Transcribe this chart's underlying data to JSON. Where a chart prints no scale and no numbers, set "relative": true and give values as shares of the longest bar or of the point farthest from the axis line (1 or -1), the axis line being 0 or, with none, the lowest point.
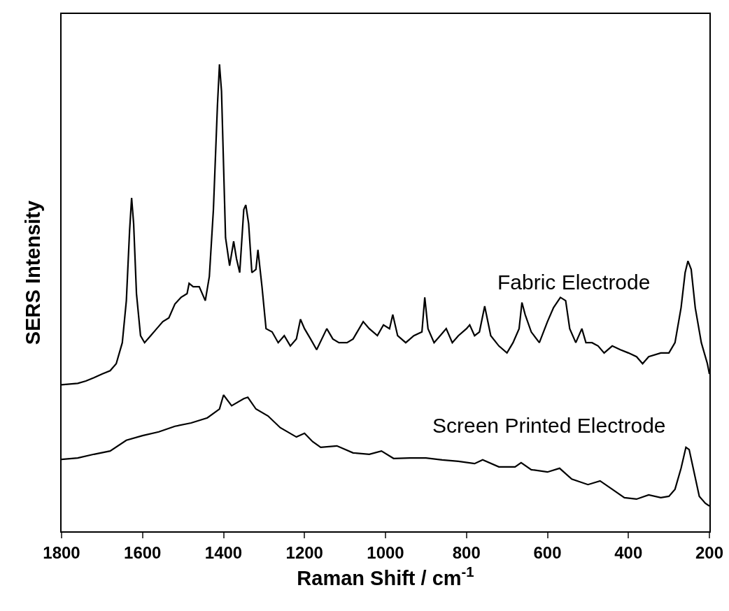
{
  "chart_data": {
    "type": "line",
    "relative": true,
    "xlabel": "Raman Shift / cm$^{-1}$",
    "ylabel": "SERS Intensity",
    "xlim": [
      1800,
      200
    ],
    "xticks": [
      1800,
      1600,
      1400,
      1200,
      1000,
      800,
      600,
      400,
      200
    ],
    "series": [
      {
        "name": "Fabric Electrode",
        "color": "#000000",
        "x": [
          1800,
          1760,
          1740,
          1720,
          1700,
          1680,
          1665,
          1650,
          1640,
          1632,
          1627,
          1622,
          1615,
          1605,
          1595,
          1580,
          1565,
          1550,
          1535,
          1520,
          1505,
          1490,
          1485,
          1475,
          1460,
          1445,
          1435,
          1425,
          1415,
          1410,
          1405,
          1395,
          1385,
          1375,
          1368,
          1360,
          1350,
          1345,
          1338,
          1330,
          1320,
          1315,
          1305,
          1295,
          1280,
          1265,
          1250,
          1235,
          1220,
          1210,
          1200,
          1185,
          1170,
          1145,
          1130,
          1115,
          1095,
          1080,
          1055,
          1040,
          1020,
          1005,
          990,
          982,
          970,
          950,
          930,
          910,
          903,
          895,
          880,
          865,
          850,
          835,
          820,
          800,
          792,
          780,
          768,
          755,
          740,
          720,
          700,
          685,
          670,
          663,
          655,
          640,
          620,
          600,
          585,
          568,
          555,
          545,
          530,
          515,
          505,
          490,
          475,
          460,
          440,
          420,
          400,
          380,
          365,
          350,
          320,
          300,
          285,
          270,
          260,
          253,
          245,
          235,
          220,
          205,
          200
        ],
        "values": [
          0.314,
          0.317,
          0.322,
          0.329,
          0.337,
          0.344,
          0.359,
          0.404,
          0.494,
          0.644,
          0.714,
          0.659,
          0.509,
          0.419,
          0.404,
          0.419,
          0.434,
          0.449,
          0.457,
          0.487,
          0.501,
          0.509,
          0.531,
          0.524,
          0.524,
          0.494,
          0.546,
          0.689,
          0.913,
          1,
          0.943,
          0.629,
          0.569,
          0.621,
          0.584,
          0.554,
          0.689,
          0.699,
          0.659,
          0.554,
          0.561,
          0.603,
          0.524,
          0.434,
          0.427,
          0.404,
          0.419,
          0.397,
          0.412,
          0.454,
          0.434,
          0.412,
          0.389,
          0.434,
          0.412,
          0.404,
          0.404,
          0.412,
          0.449,
          0.434,
          0.419,
          0.442,
          0.434,
          0.464,
          0.419,
          0.404,
          0.419,
          0.427,
          0.501,
          0.434,
          0.404,
          0.419,
          0.434,
          0.404,
          0.419,
          0.434,
          0.442,
          0.419,
          0.427,
          0.482,
          0.419,
          0.397,
          0.382,
          0.404,
          0.434,
          0.49,
          0.464,
          0.427,
          0.404,
          0.449,
          0.479,
          0.501,
          0.494,
          0.434,
          0.404,
          0.434,
          0.404,
          0.404,
          0.397,
          0.382,
          0.397,
          0.389,
          0.382,
          0.374,
          0.359,
          0.374,
          0.382,
          0.382,
          0.404,
          0.479,
          0.554,
          0.579,
          0.561,
          0.479,
          0.404,
          0.359,
          0.337
        ]
      },
      {
        "name": "Screen Printed Electrode",
        "color": "#000000",
        "x": [
          1800,
          1760,
          1720,
          1680,
          1640,
          1600,
          1560,
          1520,
          1480,
          1440,
          1410,
          1400,
          1380,
          1350,
          1340,
          1320,
          1290,
          1260,
          1220,
          1200,
          1180,
          1160,
          1120,
          1080,
          1040,
          1010,
          980,
          940,
          900,
          860,
          820,
          780,
          760,
          720,
          680,
          665,
          640,
          600,
          570,
          540,
          500,
          470,
          440,
          410,
          380,
          350,
          320,
          300,
          285,
          270,
          258,
          250,
          240,
          225,
          210,
          200
        ],
        "values": [
          0.154,
          0.157,
          0.165,
          0.172,
          0.195,
          0.205,
          0.213,
          0.225,
          0.232,
          0.243,
          0.262,
          0.292,
          0.269,
          0.284,
          0.287,
          0.262,
          0.247,
          0.222,
          0.202,
          0.21,
          0.192,
          0.18,
          0.183,
          0.168,
          0.165,
          0.172,
          0.156,
          0.157,
          0.157,
          0.153,
          0.15,
          0.145,
          0.153,
          0.138,
          0.138,
          0.147,
          0.132,
          0.127,
          0.135,
          0.112,
          0.1,
          0.108,
          0.09,
          0.072,
          0.069,
          0.078,
          0.072,
          0.075,
          0.09,
          0.135,
          0.18,
          0.175,
          0.135,
          0.075,
          0.06,
          0.054
        ]
      }
    ]
  }
}
